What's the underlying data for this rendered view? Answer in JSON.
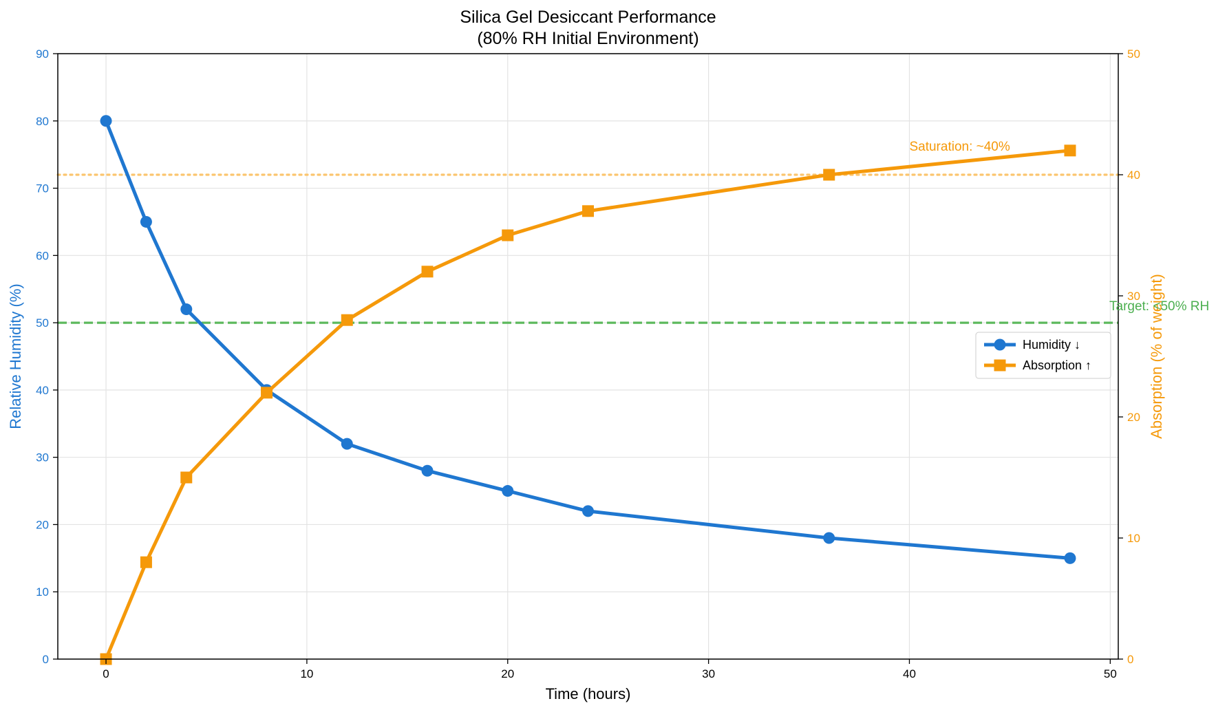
{
  "chart_data": {
    "type": "line",
    "title": "Silica Gel Desiccant Performance",
    "subtitle": "(80% RH Initial Environment)",
    "xlabel": "Time (hours)",
    "ylabel_left": "Relative Humidity (%)",
    "ylabel_right": "Absorption (% of weight)",
    "xlim": [
      -2.4,
      50.4
    ],
    "ylim_left": [
      0,
      90
    ],
    "ylim_right": [
      0,
      50
    ],
    "x_ticks": [
      0,
      10,
      20,
      30,
      40,
      50
    ],
    "y_ticks_left": [
      0,
      10,
      20,
      30,
      40,
      50,
      60,
      70,
      80,
      90
    ],
    "y_ticks_right": [
      0,
      10,
      20,
      30,
      40,
      50
    ],
    "grid": true,
    "legend_position": "center-right",
    "series": [
      {
        "name": "Humidity ↓",
        "axis": "left",
        "marker": "circle",
        "color": "#1f77d0",
        "x": [
          0,
          2,
          4,
          8,
          12,
          16,
          20,
          24,
          36,
          48
        ],
        "values": [
          80,
          65,
          52,
          40,
          32,
          28,
          25,
          22,
          18,
          15
        ]
      },
      {
        "name": "Absorption ↑",
        "axis": "right",
        "marker": "square",
        "color": "#f5990a",
        "x": [
          0,
          2,
          4,
          8,
          12,
          16,
          20,
          24,
          36,
          48
        ],
        "values": [
          0,
          8,
          15,
          22,
          28,
          32,
          35,
          37,
          40,
          42
        ]
      }
    ],
    "reference_lines": [
      {
        "axis": "left",
        "value": 50,
        "style": "dashed",
        "color": "#5cb85c",
        "label": "Target: <50% RH"
      },
      {
        "axis": "right",
        "value": 40,
        "style": "dotted",
        "color": "#fbc56e",
        "label": "Saturation: ~40%"
      }
    ],
    "colors": {
      "left_axis": "#1f77d0",
      "right_axis": "#f5990a",
      "target": "#4caf50",
      "saturation_text": "#f5990a"
    }
  }
}
